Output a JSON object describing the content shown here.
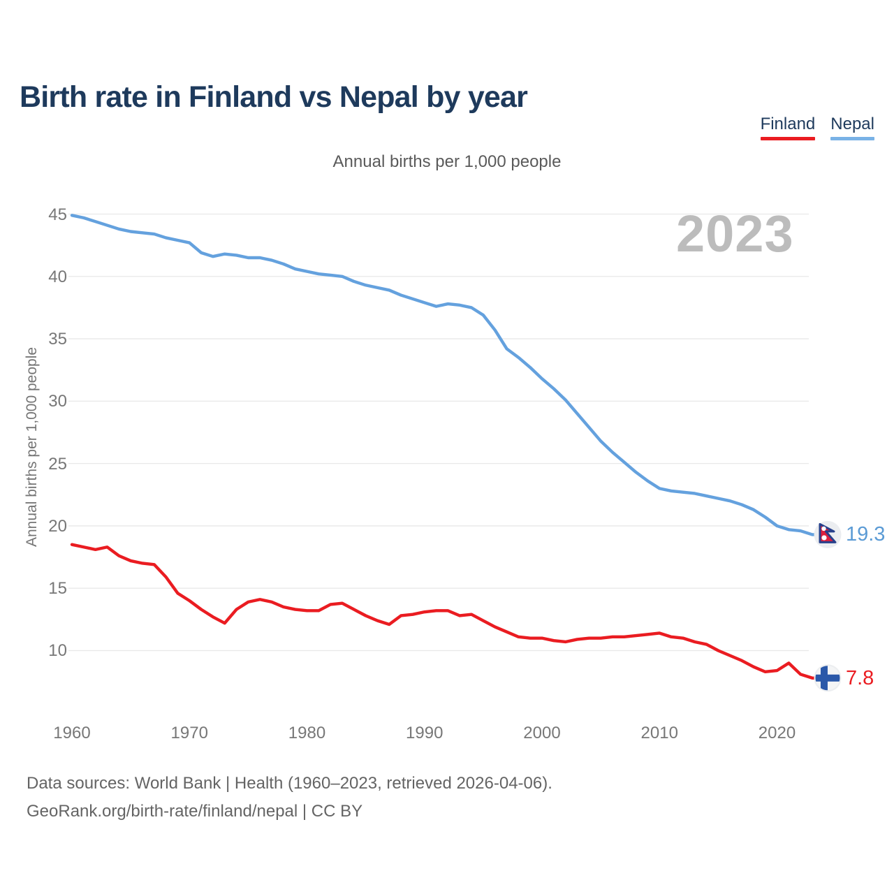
{
  "header": {
    "title": "Birth rate in Finland vs Nepal by year"
  },
  "legend": [
    {
      "label": "Finland",
      "color": "#ea1c21"
    },
    {
      "label": "Nepal",
      "color": "#79b2e6"
    }
  ],
  "subtitle": "Annual births per 1,000 people",
  "watermark": "2023",
  "y_axis_label": "Annual births per 1,000 people",
  "end_labels": {
    "nepal": "19.3",
    "finland": "7.8"
  },
  "end_label_colors": {
    "nepal": "#5b9bd5",
    "finland": "#ea1c21"
  },
  "footer": {
    "line1": "Data sources: World Bank | Health (1960–2023, retrieved 2026-04-06).",
    "line2": "GeoRank.org/birth-rate/finland/nepal | CC BY"
  },
  "chart_data": {
    "type": "line",
    "title": "Annual births per 1,000 people",
    "ylabel": "Annual births per 1,000 people",
    "xlabel": "",
    "grid": true,
    "legend_position": "top-right",
    "xlim": [
      1960,
      2023
    ],
    "ylim": [
      7,
      46
    ],
    "xticks": [
      1960,
      1970,
      1980,
      1990,
      2000,
      2010,
      2020
    ],
    "yticks": [
      10,
      15,
      20,
      25,
      30,
      35,
      40,
      45
    ],
    "x": [
      1960,
      1961,
      1962,
      1963,
      1964,
      1965,
      1966,
      1967,
      1968,
      1969,
      1970,
      1971,
      1972,
      1973,
      1974,
      1975,
      1976,
      1977,
      1978,
      1979,
      1980,
      1981,
      1982,
      1983,
      1984,
      1985,
      1986,
      1987,
      1988,
      1989,
      1990,
      1991,
      1992,
      1993,
      1994,
      1995,
      1996,
      1997,
      1998,
      1999,
      2000,
      2001,
      2002,
      2003,
      2004,
      2005,
      2006,
      2007,
      2008,
      2009,
      2010,
      2011,
      2012,
      2013,
      2014,
      2015,
      2016,
      2017,
      2018,
      2019,
      2020,
      2021,
      2022,
      2023
    ],
    "series": [
      {
        "name": "Finland",
        "color": "#ea1c21",
        "end_value": 7.8,
        "values": [
          18.5,
          18.3,
          18.1,
          18.3,
          17.6,
          17.2,
          17.0,
          16.9,
          15.9,
          14.6,
          14.0,
          13.3,
          12.7,
          12.2,
          13.3,
          13.9,
          14.1,
          13.9,
          13.5,
          13.3,
          13.2,
          13.2,
          13.7,
          13.8,
          13.3,
          12.8,
          12.4,
          12.1,
          12.8,
          12.9,
          13.1,
          13.2,
          13.2,
          12.8,
          12.9,
          12.4,
          11.9,
          11.5,
          11.1,
          11.0,
          11.0,
          10.8,
          10.7,
          10.9,
          11.0,
          11.0,
          11.1,
          11.1,
          11.2,
          11.3,
          11.4,
          11.1,
          11.0,
          10.7,
          10.5,
          10.0,
          9.6,
          9.2,
          8.7,
          8.3,
          8.4,
          9.0,
          8.1,
          7.8
        ]
      },
      {
        "name": "Nepal",
        "color": "#64a1de",
        "end_value": 19.3,
        "values": [
          44.9,
          44.7,
          44.4,
          44.1,
          43.8,
          43.6,
          43.5,
          43.4,
          43.1,
          42.9,
          42.7,
          41.9,
          41.6,
          41.8,
          41.7,
          41.5,
          41.5,
          41.3,
          41.0,
          40.6,
          40.4,
          40.2,
          40.1,
          40.0,
          39.6,
          39.3,
          39.1,
          38.9,
          38.5,
          38.2,
          37.9,
          37.6,
          37.8,
          37.7,
          37.5,
          36.9,
          35.7,
          34.2,
          33.5,
          32.7,
          31.8,
          31.0,
          30.1,
          29.0,
          27.9,
          26.8,
          25.9,
          25.1,
          24.3,
          23.6,
          23.0,
          22.8,
          22.7,
          22.6,
          22.4,
          22.2,
          22.0,
          21.7,
          21.3,
          20.7,
          20.0,
          19.7,
          19.6,
          19.3
        ]
      }
    ]
  }
}
